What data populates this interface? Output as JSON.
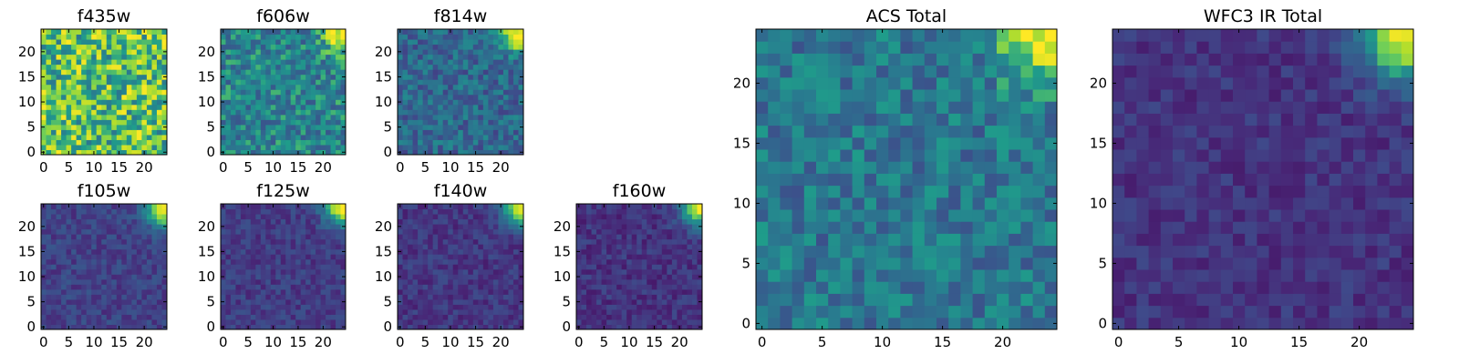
{
  "chart_data": [
    {
      "type": "heatmap",
      "title": "f435w",
      "xticks": [
        "0",
        "5",
        "10",
        "15",
        "20"
      ],
      "yticks": [
        "0",
        "5",
        "10",
        "15",
        "20"
      ],
      "xlim": [
        0,
        25
      ],
      "ylim": [
        0,
        25
      ],
      "source_peak": [
        24,
        24
      ],
      "peak_strength": 0.08,
      "background_level": 0.72,
      "noise": 0.28
    },
    {
      "type": "heatmap",
      "title": "f606w",
      "xticks": [
        "0",
        "5",
        "10",
        "15",
        "20"
      ],
      "yticks": [
        "0",
        "5",
        "10",
        "15",
        "20"
      ],
      "xlim": [
        0,
        25
      ],
      "ylim": [
        0,
        25
      ],
      "source_peak": [
        24,
        24
      ],
      "peak_strength": 0.55,
      "background_level": 0.5,
      "noise": 0.2
    },
    {
      "type": "heatmap",
      "title": "f814w",
      "xticks": [
        "0",
        "5",
        "10",
        "15",
        "20"
      ],
      "yticks": [
        "0",
        "5",
        "10",
        "15",
        "20"
      ],
      "xlim": [
        0,
        25
      ],
      "ylim": [
        0,
        25
      ],
      "source_peak": [
        24,
        24
      ],
      "peak_strength": 0.72,
      "background_level": 0.38,
      "noise": 0.16
    },
    {
      "type": "heatmap",
      "title": "f105w",
      "xticks": [
        "0",
        "5",
        "10",
        "15",
        "20"
      ],
      "yticks": [
        "0",
        "5",
        "10",
        "15",
        "20"
      ],
      "xlim": [
        0,
        25
      ],
      "ylim": [
        0,
        25
      ],
      "source_peak": [
        24,
        24
      ],
      "peak_strength": 0.8,
      "background_level": 0.22,
      "noise": 0.09
    },
    {
      "type": "heatmap",
      "title": "f125w",
      "xticks": [
        "0",
        "5",
        "10",
        "15",
        "20"
      ],
      "yticks": [
        "0",
        "5",
        "10",
        "15",
        "20"
      ],
      "xlim": [
        0,
        25
      ],
      "ylim": [
        0,
        25
      ],
      "source_peak": [
        24,
        24
      ],
      "peak_strength": 0.8,
      "background_level": 0.2,
      "noise": 0.09
    },
    {
      "type": "heatmap",
      "title": "f140w",
      "xticks": [
        "0",
        "5",
        "10",
        "15",
        "20"
      ],
      "yticks": [
        "0",
        "5",
        "10",
        "15",
        "20"
      ],
      "xlim": [
        0,
        25
      ],
      "ylim": [
        0,
        25
      ],
      "source_peak": [
        24,
        24
      ],
      "peak_strength": 0.82,
      "background_level": 0.18,
      "noise": 0.09
    },
    {
      "type": "heatmap",
      "title": "f160w",
      "xticks": [
        "0",
        "5",
        "10",
        "15",
        "20"
      ],
      "yticks": [
        "0",
        "5",
        "10",
        "15",
        "20"
      ],
      "xlim": [
        0,
        25
      ],
      "ylim": [
        0,
        25
      ],
      "source_peak": [
        24,
        24
      ],
      "peak_strength": 0.82,
      "background_level": 0.17,
      "noise": 0.09
    },
    {
      "type": "heatmap",
      "title": "ACS Total",
      "xticks": [
        "0",
        "5",
        "10",
        "15",
        "20"
      ],
      "yticks": [
        "0",
        "5",
        "10",
        "15",
        "20"
      ],
      "xlim": [
        0,
        25
      ],
      "ylim": [
        0,
        25
      ],
      "source_peak": [
        24,
        24
      ],
      "peak_strength": 0.6,
      "background_level": 0.45,
      "noise": 0.17
    },
    {
      "type": "heatmap",
      "title": "WFC3 IR Total",
      "xticks": [
        "0",
        "5",
        "10",
        "15",
        "20"
      ],
      "yticks": [
        "0",
        "5",
        "10",
        "15",
        "20"
      ],
      "xlim": [
        0,
        25
      ],
      "ylim": [
        0,
        25
      ],
      "source_peak": [
        24,
        24
      ],
      "peak_strength": 0.82,
      "background_level": 0.17,
      "noise": 0.08
    }
  ],
  "colormap": "viridis"
}
